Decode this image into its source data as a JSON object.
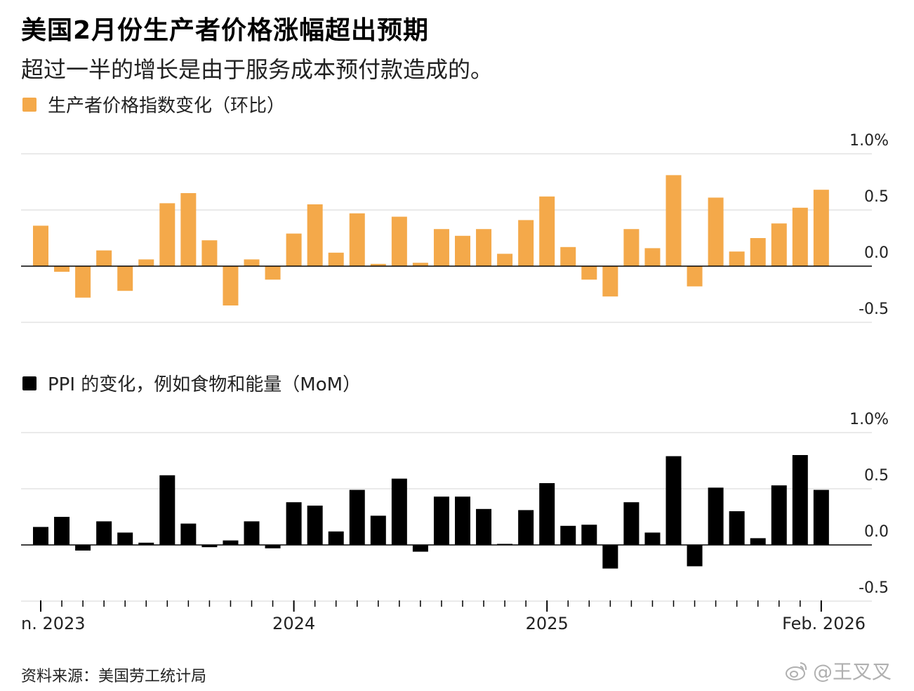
{
  "title": "美国2月份生产者价格涨幅超出预期",
  "subtitle": "超过一半的增长是由于服务成本预付款造成的。",
  "source": "资料来源：美国劳工统计局",
  "watermark": "@王叉叉",
  "colors": {
    "panel1": "#f4a94a",
    "panel2": "#000000",
    "grid": "#d6d6d6",
    "zero": "#000000"
  },
  "x_labels": [
    "n. 2023",
    "2024",
    "2025",
    "Feb. 2026"
  ],
  "chart_data": [
    {
      "type": "bar",
      "legend": "生产者价格指数变化（环比）",
      "y_tick_labels": [
        "1.0%",
        "0.5",
        "0.0",
        "-0.5"
      ],
      "y_ticks": [
        1.0,
        0.5,
        0.0,
        -0.5
      ],
      "ylim": [
        -0.5,
        1.0
      ],
      "grid": true,
      "categories": [
        "2023-01",
        "2023-02",
        "2023-03",
        "2023-04",
        "2023-05",
        "2023-06",
        "2023-07",
        "2023-08",
        "2023-09",
        "2023-10",
        "2023-11",
        "2023-12",
        "2024-01",
        "2024-02",
        "2024-03",
        "2024-04",
        "2024-05",
        "2024-06",
        "2024-07",
        "2024-08",
        "2024-09",
        "2024-10",
        "2024-11",
        "2024-12",
        "2025-01",
        "2025-02",
        "2025-03",
        "2025-04",
        "2025-05",
        "2025-06",
        "2025-07",
        "2025-08",
        "2025-09",
        "2025-10",
        "2025-11",
        "2025-12",
        "2026-01",
        "2026-02"
      ],
      "values": [
        0.36,
        -0.05,
        -0.28,
        0.14,
        -0.22,
        0.06,
        0.56,
        0.65,
        0.23,
        -0.35,
        0.06,
        -0.12,
        0.29,
        0.55,
        0.12,
        0.47,
        0.02,
        0.44,
        0.03,
        0.33,
        0.27,
        0.33,
        0.11,
        0.41,
        0.62,
        0.17,
        -0.12,
        -0.27,
        0.33,
        0.16,
        0.81,
        -0.18,
        0.61,
        0.13,
        0.25,
        0.38,
        0.52,
        0.68
      ]
    },
    {
      "type": "bar",
      "legend": "PPI 的变化，例如食物和能量（MoM）",
      "y_tick_labels": [
        "1.0%",
        "0.5",
        "0.0",
        "-0.5"
      ],
      "y_ticks": [
        1.0,
        0.5,
        0.0,
        -0.5
      ],
      "ylim": [
        -0.5,
        1.0
      ],
      "grid": true,
      "categories": [
        "2023-01",
        "2023-02",
        "2023-03",
        "2023-04",
        "2023-05",
        "2023-06",
        "2023-07",
        "2023-08",
        "2023-09",
        "2023-10",
        "2023-11",
        "2023-12",
        "2024-01",
        "2024-02",
        "2024-03",
        "2024-04",
        "2024-05",
        "2024-06",
        "2024-07",
        "2024-08",
        "2024-09",
        "2024-10",
        "2024-11",
        "2024-12",
        "2025-01",
        "2025-02",
        "2025-03",
        "2025-04",
        "2025-05",
        "2025-06",
        "2025-07",
        "2025-08",
        "2025-09",
        "2025-10",
        "2025-11",
        "2025-12",
        "2026-01",
        "2026-02"
      ],
      "values": [
        0.16,
        0.25,
        -0.05,
        0.21,
        0.11,
        0.02,
        0.62,
        0.19,
        -0.02,
        0.04,
        0.21,
        -0.03,
        0.38,
        0.35,
        0.12,
        0.49,
        0.26,
        0.59,
        -0.06,
        0.43,
        0.43,
        0.32,
        0.0,
        0.31,
        0.55,
        0.17,
        0.18,
        -0.21,
        0.38,
        0.11,
        0.79,
        -0.19,
        0.51,
        0.3,
        0.06,
        0.53,
        0.8,
        0.49
      ]
    }
  ]
}
